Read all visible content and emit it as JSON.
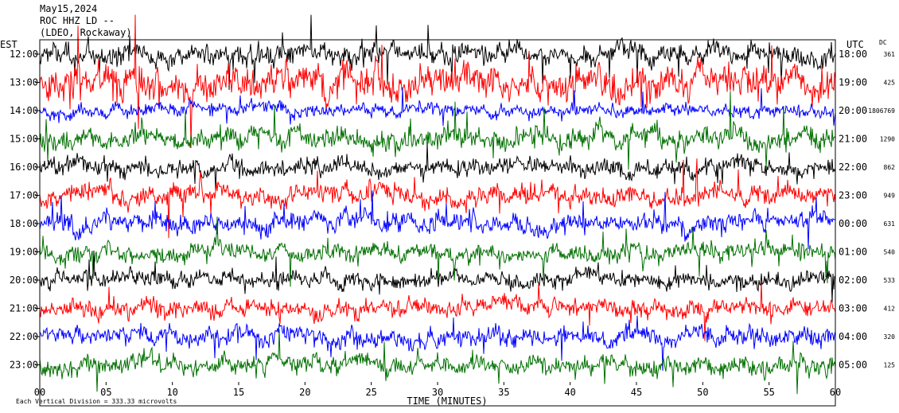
{
  "header": {
    "date": "May15,2024",
    "station": "ROC HHZ LD --",
    "site": "(LDEO, Rockaway)"
  },
  "axis": {
    "left_title": "EST",
    "right_title": "UTC",
    "dc_title": "DC",
    "x_title": "TIME (MINUTES)",
    "footer": "Each Vertical Division =  333.33 microvolts"
  },
  "chart_data": {
    "type": "line",
    "title": "",
    "xlabel": "TIME (MINUTES)",
    "x_ticks": [
      "00",
      "05",
      "10",
      "15",
      "20",
      "25",
      "30",
      "35",
      "40",
      "45",
      "50",
      "55",
      "60"
    ],
    "xlim": [
      0,
      60
    ],
    "row_colors": [
      "#000000",
      "#ff0000",
      "#0000ff",
      "#007000"
    ],
    "rows": [
      {
        "est": "12:00",
        "utc": "18:00",
        "dc": "361",
        "color": "#000000",
        "amplitude": 1.0
      },
      {
        "est": "13:00",
        "utc": "19:00",
        "dc": "425",
        "color": "#ff0000",
        "amplitude": 1.6
      },
      {
        "est": "14:00",
        "utc": "20:00",
        "dc": "-1806769",
        "color": "#0000ff",
        "amplitude": 0.6
      },
      {
        "est": "15:00",
        "utc": "21:00",
        "dc": "1290",
        "color": "#007000",
        "amplitude": 1.0
      },
      {
        "est": "16:00",
        "utc": "22:00",
        "dc": "862",
        "color": "#000000",
        "amplitude": 0.8
      },
      {
        "est": "17:00",
        "utc": "23:00",
        "dc": "949",
        "color": "#ff0000",
        "amplitude": 0.9
      },
      {
        "est": "18:00",
        "utc": "00:00",
        "dc": "631",
        "color": "#0000ff",
        "amplitude": 0.9
      },
      {
        "est": "19:00",
        "utc": "01:00",
        "dc": "540",
        "color": "#007000",
        "amplitude": 0.85
      },
      {
        "est": "20:00",
        "utc": "02:00",
        "dc": "533",
        "color": "#000000",
        "amplitude": 0.8
      },
      {
        "est": "21:00",
        "utc": "03:00",
        "dc": "412",
        "color": "#ff0000",
        "amplitude": 0.85
      },
      {
        "est": "22:00",
        "utc": "04:00",
        "dc": "320",
        "color": "#0000ff",
        "amplitude": 0.9
      },
      {
        "est": "23:00",
        "utc": "05:00",
        "dc": "125",
        "color": "#007000",
        "amplitude": 0.9
      }
    ]
  }
}
